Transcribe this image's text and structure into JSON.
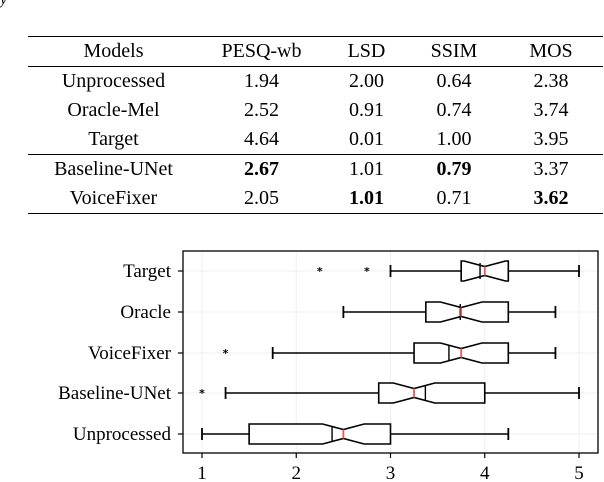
{
  "clipped_glyph": "y",
  "table": {
    "headers": [
      "Models",
      "PESQ-wb",
      "LSD",
      "SSIM",
      "MOS"
    ],
    "rows": [
      {
        "model": "Unprocessed",
        "pesq": "1.94",
        "lsd": "2.00",
        "ssim": "0.64",
        "mos": "2.38"
      },
      {
        "model": "Oracle-Mel",
        "pesq": "2.52",
        "lsd": "0.91",
        "ssim": "0.74",
        "mos": "3.74"
      },
      {
        "model": "Target",
        "pesq": "4.64",
        "lsd": "0.01",
        "ssim": "1.00",
        "mos": "3.95"
      },
      {
        "model": "Baseline-UNet",
        "pesq": "2.67",
        "lsd": "1.01",
        "ssim": "0.79",
        "mos": "3.37"
      },
      {
        "model": "VoiceFixer",
        "pesq": "2.05",
        "lsd": "1.01",
        "ssim": "0.71",
        "mos": "3.62"
      }
    ],
    "bold_cells": [
      {
        "row": 3,
        "col": "pesq"
      },
      {
        "row": 3,
        "col": "ssim"
      },
      {
        "row": 4,
        "col": "lsd"
      },
      {
        "row": 4,
        "col": "mos"
      }
    ]
  },
  "chart_data": {
    "type": "boxplot",
    "orientation": "horizontal",
    "notched": true,
    "title": "",
    "xlabel": "",
    "ylabel": "",
    "xlim": [
      0.8,
      5.2
    ],
    "xticks": [
      1,
      2,
      3,
      4,
      5
    ],
    "xtick_labels": [
      "1",
      "2",
      "3",
      "4",
      "5"
    ],
    "grid": true,
    "categories": [
      "Target",
      "Oracle",
      "VoiceFixer",
      "Baseline-UNet",
      "Unprocessed"
    ],
    "series": [
      {
        "name": "Target",
        "whisker_low": 3.0,
        "q1": 3.75,
        "median": 4.0,
        "mean_line": 3.95,
        "q3": 4.25,
        "whisker_high": 5.0,
        "outliers": [
          2.25,
          2.75
        ]
      },
      {
        "name": "Oracle",
        "whisker_low": 2.5,
        "q1": 3.375,
        "median": 3.75,
        "mean_line": 3.74,
        "q3": 4.25,
        "whisker_high": 4.75,
        "outliers": []
      },
      {
        "name": "VoiceFixer",
        "whisker_low": 1.75,
        "q1": 3.25,
        "median": 3.75,
        "mean_line": 3.62,
        "q3": 4.25,
        "whisker_high": 4.75,
        "outliers": [
          1.25
        ]
      },
      {
        "name": "Baseline-UNet",
        "whisker_low": 1.25,
        "q1": 2.875,
        "median": 3.25,
        "mean_line": 3.37,
        "q3": 4.0,
        "whisker_high": 5.0,
        "outliers": [
          1.0
        ]
      },
      {
        "name": "Unprocessed",
        "whisker_low": 1.0,
        "q1": 1.5,
        "median": 2.5,
        "mean_line": 2.38,
        "q3": 3.0,
        "whisker_high": 4.25,
        "outliers": []
      }
    ],
    "colors": {
      "median": "#e8585a",
      "box": "#000000",
      "grid": "#efefef"
    }
  }
}
